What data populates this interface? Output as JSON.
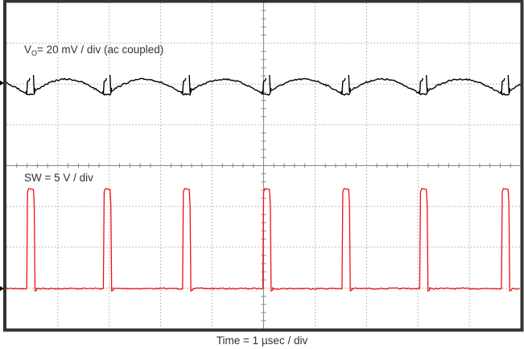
{
  "chart_data": {
    "type": "line",
    "title": "",
    "xlabel": "Time = 1 µsec / div",
    "ylabel": "",
    "grid": true,
    "divisions": {
      "horizontal": 10,
      "vertical": 8
    },
    "annotations": [
      {
        "text": "VO = 20 mV / div (ac coupled)",
        "position": "upper trace"
      },
      {
        "text": "SW = 5 V / div",
        "position": "lower trace"
      },
      {
        "text": "Time = 1 µsec / div",
        "position": "below plot"
      }
    ],
    "series": [
      {
        "name": "VO",
        "color": "#000000",
        "scale": "20 mV / div",
        "coupling": "ac",
        "description": "Output voltage ripple, ~1 div peak-to-peak sawtooth-like arcs with switching spikes at each SW rising edge",
        "baseline_div": 2.0,
        "ripple_pp_mV": 20
      },
      {
        "name": "SW",
        "color": "#ee1111",
        "scale": "5 V / div",
        "description": "Switch-node pulse train, amplitude ~2.5 div (~12.5 V), pulse width ~0.13 µs",
        "pulse_rising_edges_us": [
          0.41,
          1.9,
          3.44,
          5.0,
          6.54,
          8.05,
          9.64
        ],
        "pulse_width_us": 0.13,
        "high_V": 12.5,
        "low_V": 0,
        "period_us": 1.54
      }
    ],
    "x": {
      "range_us": [
        0,
        10
      ]
    }
  },
  "labels": {
    "vo_main": "V",
    "vo_sub": "O",
    "vo_rest": "= 20 mV / div (ac coupled)",
    "sw": "SW = 5 V / div",
    "time": "Time = 1 µsec / div"
  },
  "colors": {
    "frame": "#333333",
    "grid": "#aaaaaa",
    "vo_trace": "#000000",
    "sw_trace": "#ee1111"
  }
}
